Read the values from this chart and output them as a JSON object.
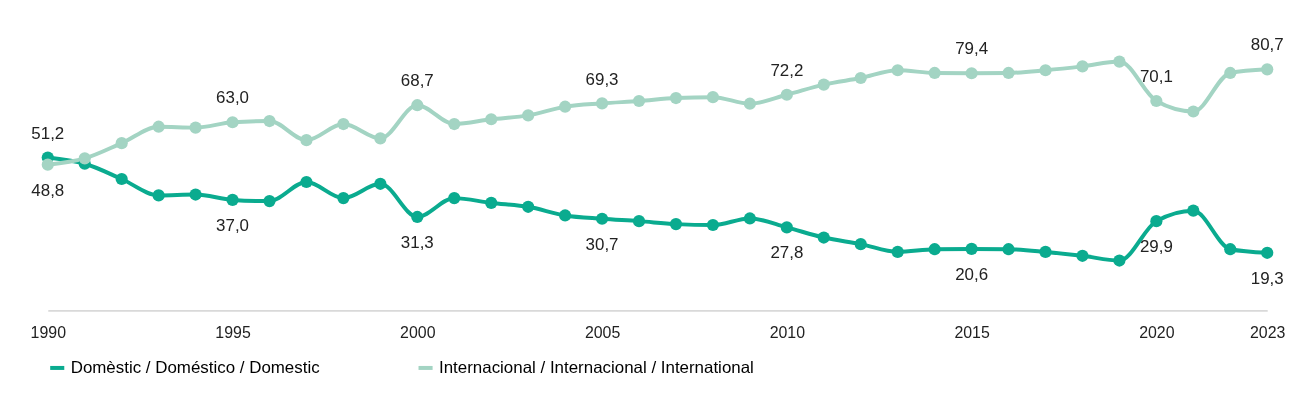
{
  "chart_data": {
    "type": "line",
    "x": [
      1990,
      1991,
      1992,
      1993,
      1994,
      1995,
      1996,
      1997,
      1998,
      1999,
      2000,
      2001,
      2002,
      2003,
      2004,
      2005,
      2006,
      2007,
      2008,
      2009,
      2010,
      2011,
      2012,
      2013,
      2014,
      2015,
      2016,
      2017,
      2018,
      2019,
      2020,
      2021,
      2022,
      2023
    ],
    "series": [
      {
        "name": "Domèstic / Doméstico / Domestic",
        "color": "#0aab8f",
        "values": [
          51.2,
          49.1,
          44.0,
          38.5,
          38.8,
          37.0,
          36.6,
          43.0,
          37.6,
          42.4,
          31.3,
          37.6,
          36.0,
          34.7,
          31.8,
          30.7,
          29.9,
          28.9,
          28.6,
          30.8,
          27.8,
          24.4,
          22.2,
          19.6,
          20.5,
          20.6,
          20.5,
          19.6,
          18.3,
          16.7,
          29.9,
          33.4,
          20.5,
          19.3
        ],
        "value_labels": [
          "51,2",
          null,
          null,
          null,
          null,
          "37,0",
          null,
          null,
          null,
          null,
          "31,3",
          null,
          null,
          null,
          null,
          "30,7",
          null,
          null,
          null,
          null,
          "27,8",
          null,
          null,
          null,
          null,
          "20,6",
          null,
          null,
          null,
          null,
          "29,9",
          null,
          null,
          "19,3"
        ]
      },
      {
        "name": "Internacional / Internacional / International",
        "color": "#a3d4c3",
        "values": [
          48.8,
          50.9,
          56.0,
          61.5,
          61.2,
          63.0,
          63.4,
          57.0,
          62.4,
          57.6,
          68.7,
          62.4,
          64.0,
          65.3,
          68.2,
          69.3,
          70.1,
          71.1,
          71.4,
          69.2,
          72.2,
          75.6,
          77.8,
          80.4,
          79.5,
          79.4,
          79.5,
          80.4,
          81.7,
          83.3,
          70.1,
          66.6,
          79.5,
          80.7
        ],
        "value_labels": [
          "48,8",
          null,
          null,
          null,
          null,
          "63,0",
          null,
          null,
          null,
          null,
          "68,7",
          null,
          null,
          null,
          null,
          "69,3",
          null,
          null,
          null,
          null,
          "72,2",
          null,
          null,
          null,
          null,
          "79,4",
          null,
          null,
          null,
          null,
          "70,1",
          null,
          null,
          "80,7"
        ]
      }
    ],
    "xlim": [
      1990,
      2023
    ],
    "xticks": [
      1990,
      1995,
      2000,
      2005,
      2010,
      2015,
      2020,
      2023
    ],
    "tick_labels": "x",
    "grid": false,
    "legend": "bottom",
    "marker": "circle",
    "line_style": "solid"
  }
}
